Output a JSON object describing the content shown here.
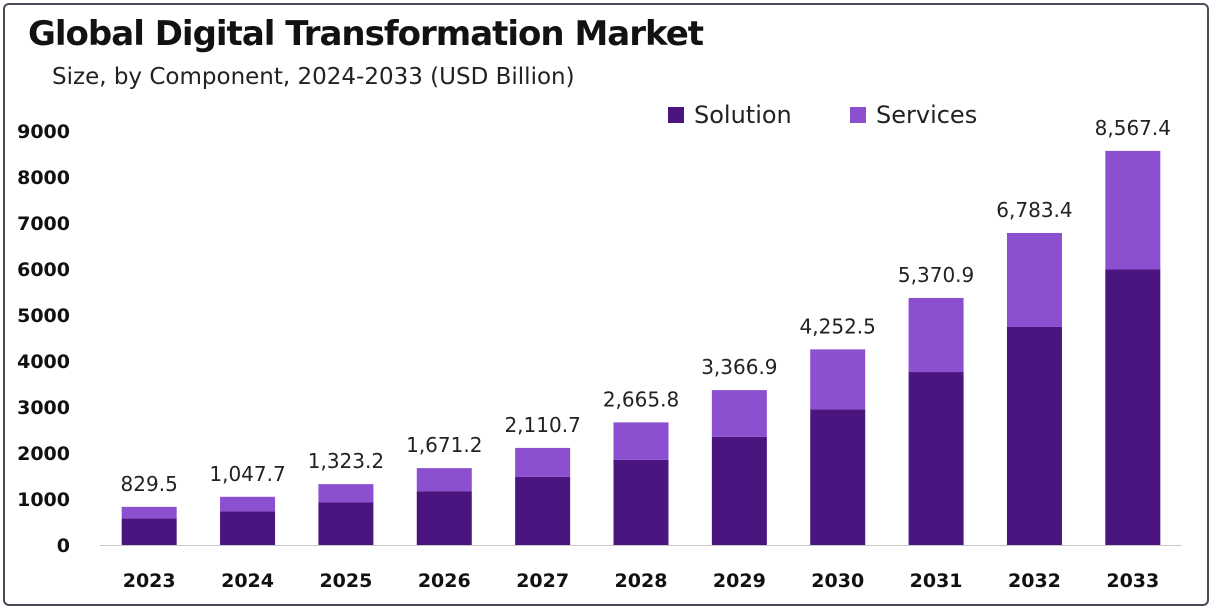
{
  "title": "Global Digital Transformation Market",
  "subtitle": "Size, by Component, 2024-2033 (USD Billion)",
  "colors": {
    "solution": "#4b1580",
    "services": "#8b4fd0"
  },
  "chart_data": {
    "type": "bar",
    "stacked": true,
    "categories": [
      "2023",
      "2024",
      "2025",
      "2026",
      "2027",
      "2028",
      "2029",
      "2030",
      "2031",
      "2032",
      "2033"
    ],
    "series": [
      {
        "name": "Solution",
        "values": [
          580,
          730,
          925,
          1170,
          1480,
          1850,
          2350,
          2950,
          3760,
          4740,
          5990
        ]
      },
      {
        "name": "Services",
        "values": [
          249.5,
          317.7,
          398.2,
          501.2,
          630.7,
          815.8,
          1016.9,
          1302.5,
          1610.9,
          2043.4,
          2577.4
        ]
      }
    ],
    "totals": [
      829.5,
      1047.7,
      1323.2,
      1671.2,
      2110.7,
      2665.8,
      3366.9,
      4252.5,
      5370.9,
      6783.4,
      8567.4
    ],
    "total_labels": [
      "829.5",
      "1,047.7",
      "1,323.2",
      "1,671.2",
      "2,110.7",
      "2,665.8",
      "3,366.9",
      "4,252.5",
      "5,370.9",
      "6,783.4",
      "8,567.4"
    ],
    "y_ticks": [
      "0",
      "1000",
      "2000",
      "3000",
      "4000",
      "5000",
      "6000",
      "7000",
      "8000",
      "9000"
    ],
    "ylim": [
      0,
      9000
    ],
    "grid": false,
    "legend_position": "top-right"
  }
}
